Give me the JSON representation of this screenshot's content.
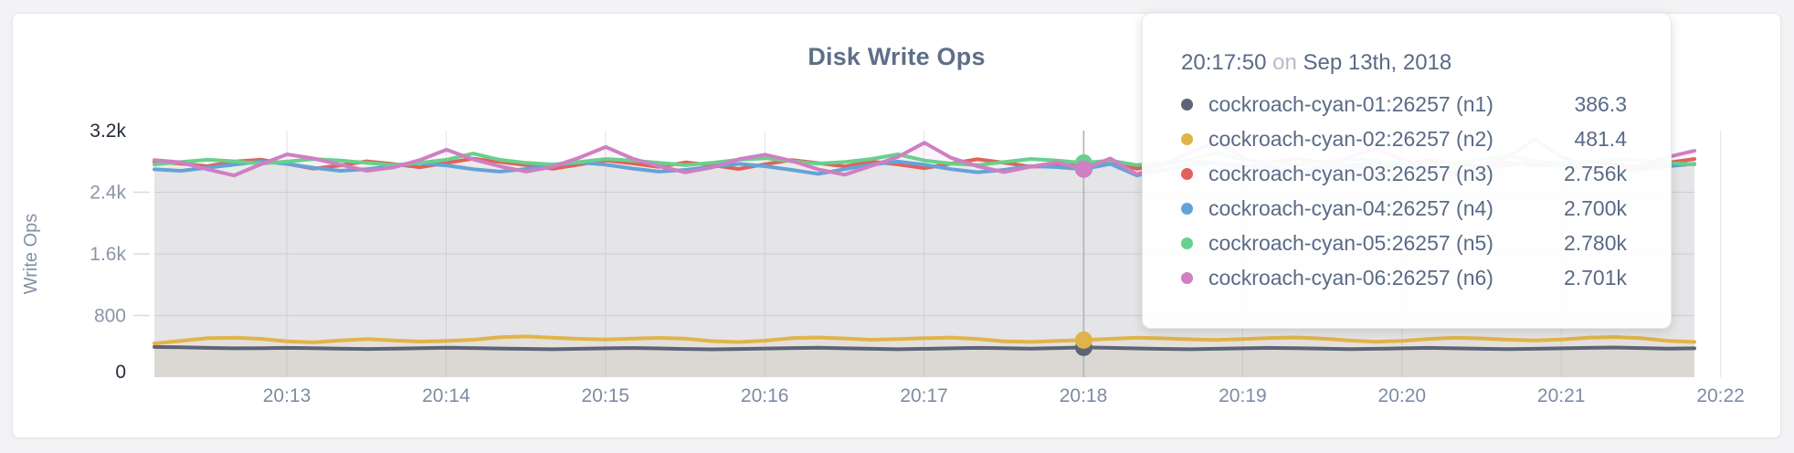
{
  "card": {
    "kind": "metric-graph-panel"
  },
  "tooltip": {
    "time": "20:17:50",
    "conj": "on",
    "date": "Sep 13th, 2018",
    "rows": [
      {
        "name": "cockroach-cyan-01:26257 (n1)",
        "value": "386.3"
      },
      {
        "name": "cockroach-cyan-02:26257 (n2)",
        "value": "481.4"
      },
      {
        "name": "cockroach-cyan-03:26257 (n3)",
        "value": "2.756k"
      },
      {
        "name": "cockroach-cyan-04:26257 (n4)",
        "value": "2.700k"
      },
      {
        "name": "cockroach-cyan-05:26257 (n5)",
        "value": "2.780k"
      },
      {
        "name": "cockroach-cyan-06:26257 (n6)",
        "value": "2.701k"
      }
    ]
  },
  "chart_data": {
    "type": "line",
    "title": "Disk Write Ops",
    "ylabel": "Write Ops",
    "ylim": [
      0,
      3200
    ],
    "grid": true,
    "sample_interval_sec": 10,
    "yticks": [
      {
        "label": "0",
        "value": 0,
        "emphasis": true
      },
      {
        "label": "800",
        "value": 800,
        "emphasis": false
      },
      {
        "label": "1.6k",
        "value": 1600,
        "emphasis": false
      },
      {
        "label": "2.4k",
        "value": 2400,
        "emphasis": false
      },
      {
        "label": "3.2k",
        "value": 3200,
        "emphasis": true
      }
    ],
    "xticks": [
      "20:13",
      "20:14",
      "20:15",
      "20:16",
      "20:17",
      "20:18",
      "20:19",
      "20:20",
      "20:21",
      "20:22"
    ],
    "hover": {
      "index": 35,
      "time": "20:17:50",
      "date": "Sep 13th, 2018"
    },
    "series": [
      {
        "name": "cockroach-cyan-01:26257 (n1)",
        "color": "#5d6477",
        "values": [
          392,
          388,
          380,
          374,
          377,
          381,
          376,
          370,
          366,
          371,
          377,
          382,
          378,
          372,
          367,
          363,
          368,
          374,
          379,
          373,
          366,
          361,
          366,
          372,
          378,
          382,
          375,
          368,
          363,
          368,
          375,
          381,
          377,
          371,
          378,
          386.3,
          380,
          373,
          367,
          363,
          368,
          374,
          380,
          377,
          370,
          364,
          368,
          374,
          380,
          375,
          369,
          364,
          369,
          375,
          381,
          385,
          378,
          371,
          375
        ]
      },
      {
        "name": "cockroach-cyan-02:26257 (n2)",
        "color": "#e0b449",
        "values": [
          438,
          472,
          506,
          512,
          498,
          466,
          452,
          476,
          494,
          478,
          462,
          470,
          486,
          518,
          528,
          512,
          498,
          490,
          500,
          510,
          500,
          468,
          456,
          474,
          506,
          516,
          502,
          486,
          494,
          506,
          514,
          496,
          466,
          458,
          472,
          481.4,
          498,
          512,
          504,
          492,
          482,
          494,
          508,
          516,
          500,
          476,
          460,
          472,
          496,
          512,
          502,
          486,
          476,
          490,
          512,
          522,
          506,
          472,
          458
        ]
      },
      {
        "name": "cockroach-cyan-03:26257 (n3)",
        "color": "#e0625a",
        "values": [
          2795,
          2772,
          2738,
          2798,
          2822,
          2768,
          2706,
          2748,
          2802,
          2766,
          2724,
          2780,
          2836,
          2794,
          2752,
          2704,
          2760,
          2814,
          2774,
          2728,
          2788,
          2752,
          2702,
          2764,
          2818,
          2778,
          2736,
          2798,
          2762,
          2712,
          2772,
          2828,
          2784,
          2732,
          2742,
          2756,
          2796,
          2704,
          2762,
          2814,
          2768,
          2722,
          2784,
          2838,
          2788,
          2742,
          2702,
          2764,
          2818,
          2772,
          2728,
          2788,
          2748,
          2758,
          2804,
          2762,
          2722,
          2784,
          2832
        ]
      },
      {
        "name": "cockroach-cyan-04:26257 (n4)",
        "color": "#64a3d9",
        "values": [
          2698,
          2678,
          2718,
          2758,
          2798,
          2768,
          2718,
          2678,
          2700,
          2740,
          2778,
          2748,
          2700,
          2668,
          2702,
          2750,
          2788,
          2758,
          2708,
          2668,
          2690,
          2730,
          2768,
          2738,
          2690,
          2638,
          2700,
          2758,
          2798,
          2758,
          2700,
          2660,
          2690,
          2740,
          2726,
          2700,
          2768,
          2618,
          2690,
          2748,
          2788,
          2748,
          2700,
          2668,
          2700,
          2748,
          2778,
          2738,
          2690,
          2658,
          2700,
          2758,
          2798,
          2758,
          2708,
          2678,
          2700,
          2738,
          2768
        ]
      },
      {
        "name": "cockroach-cyan-05:26257 (n5)",
        "color": "#68d08d",
        "values": [
          2762,
          2792,
          2822,
          2802,
          2772,
          2798,
          2832,
          2812,
          2782,
          2752,
          2782,
          2822,
          2902,
          2822,
          2782,
          2760,
          2792,
          2832,
          2812,
          2782,
          2752,
          2782,
          2822,
          2842,
          2802,
          2772,
          2792,
          2832,
          2892,
          2812,
          2772,
          2752,
          2792,
          2832,
          2812,
          2780,
          2812,
          2752,
          2782,
          2822,
          2912,
          2822,
          2782,
          2762,
          2792,
          2832,
          2812,
          2772,
          2752,
          2782,
          2822,
          2882,
          2802,
          2772,
          2792,
          2832,
          2812,
          2782,
          2762
        ]
      },
      {
        "name": "cockroach-cyan-06:26257 (n6)",
        "color": "#cf7fc4",
        "values": [
          2818,
          2788,
          2698,
          2618,
          2762,
          2892,
          2838,
          2758,
          2678,
          2722,
          2818,
          2952,
          2828,
          2738,
          2668,
          2732,
          2848,
          2988,
          2838,
          2738,
          2658,
          2722,
          2828,
          2888,
          2808,
          2698,
          2628,
          2742,
          2858,
          3042,
          2848,
          2738,
          2662,
          2732,
          2788,
          2701,
          2838,
          2632,
          2752,
          2918,
          3062,
          2848,
          2738,
          2668,
          2742,
          2858,
          2968,
          2828,
          2718,
          2622,
          2742,
          2858,
          3092,
          2858,
          2738,
          2672,
          2752,
          2858,
          2938
        ]
      }
    ]
  }
}
